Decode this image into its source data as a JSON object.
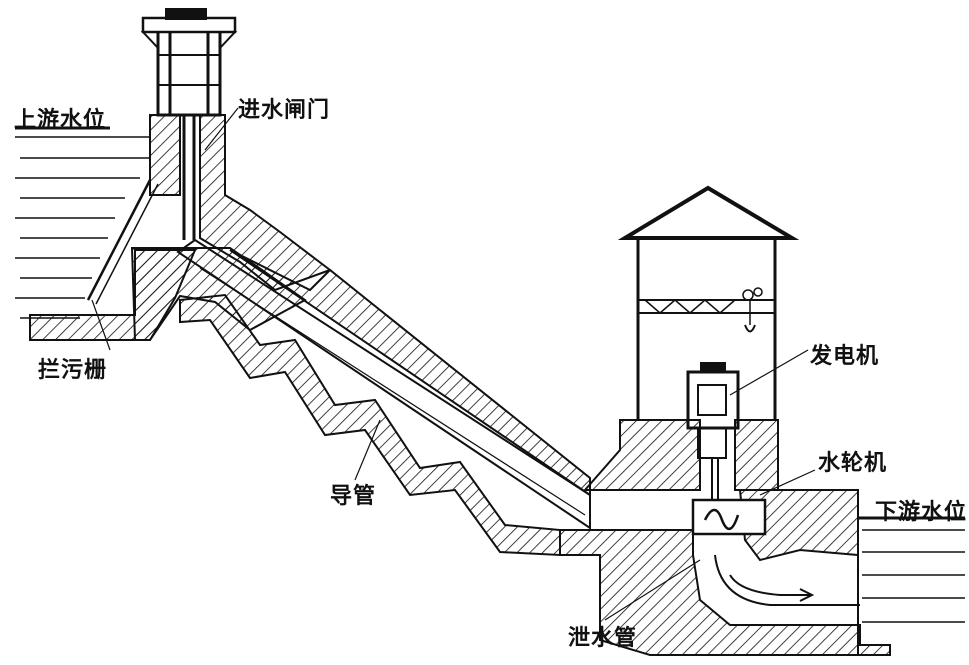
{
  "labels": {
    "upstream_water_level": "上游水位",
    "intake_gate": "进水闸门",
    "trash_rack": "拦污栅",
    "penstock": "导管",
    "generator": "发电机",
    "turbine": "水轮机",
    "downstream_water_level": "下游水位",
    "draft_tube": "泄水管"
  },
  "colors": {
    "ink": "#111111",
    "paper": "#ffffff"
  }
}
